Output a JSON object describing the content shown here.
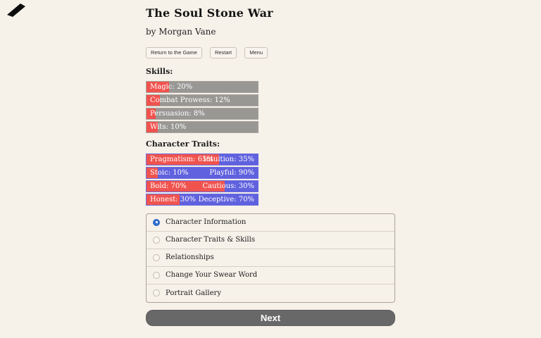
{
  "page": {
    "title": "The Soul Stone War",
    "author": "by Morgan Vane"
  },
  "toolbar": {
    "return_label": "Return to the Game",
    "restart_label": "Restart",
    "menu_label": "Menu"
  },
  "skills": {
    "heading": "Skills:",
    "items": [
      {
        "text": "Magic: 20%",
        "pct": 20
      },
      {
        "text": "Combat Prowess: 12%",
        "pct": 12
      },
      {
        "text": "Persuasion: 8%",
        "pct": 8
      },
      {
        "text": "Wits: 10%",
        "pct": 10
      }
    ]
  },
  "traits": {
    "heading": "Character Traits:",
    "pairs": [
      {
        "left_text": "Pragmatism: 65%",
        "left_pct": 65,
        "right_text": "Intuition: 35%"
      },
      {
        "left_text": "Stoic: 10%",
        "left_pct": 10,
        "right_text": "Playful: 90%"
      },
      {
        "left_text": "Bold: 70%",
        "left_pct": 70,
        "right_text": "Cautious: 30%"
      },
      {
        "left_text": "Honest: 30%",
        "left_pct": 30,
        "right_text": "Deceptive: 70%"
      }
    ]
  },
  "menu": {
    "options": [
      {
        "label": "Character Information",
        "selected": true
      },
      {
        "label": "Character Traits & Skills",
        "selected": false
      },
      {
        "label": "Relationships",
        "selected": false
      },
      {
        "label": "Change Your Swear Word",
        "selected": false
      },
      {
        "label": "Portrait Gallery",
        "selected": false
      }
    ]
  },
  "footer": {
    "next_label": "Next"
  },
  "colors": {
    "background": "#f6f1e9",
    "skill_fill": "#f0534e",
    "skill_track": "#989794",
    "trait_left": "#f0534e",
    "trait_right": "#5f61de",
    "radio_selected": "#3170d2",
    "next_button": "#686868"
  }
}
